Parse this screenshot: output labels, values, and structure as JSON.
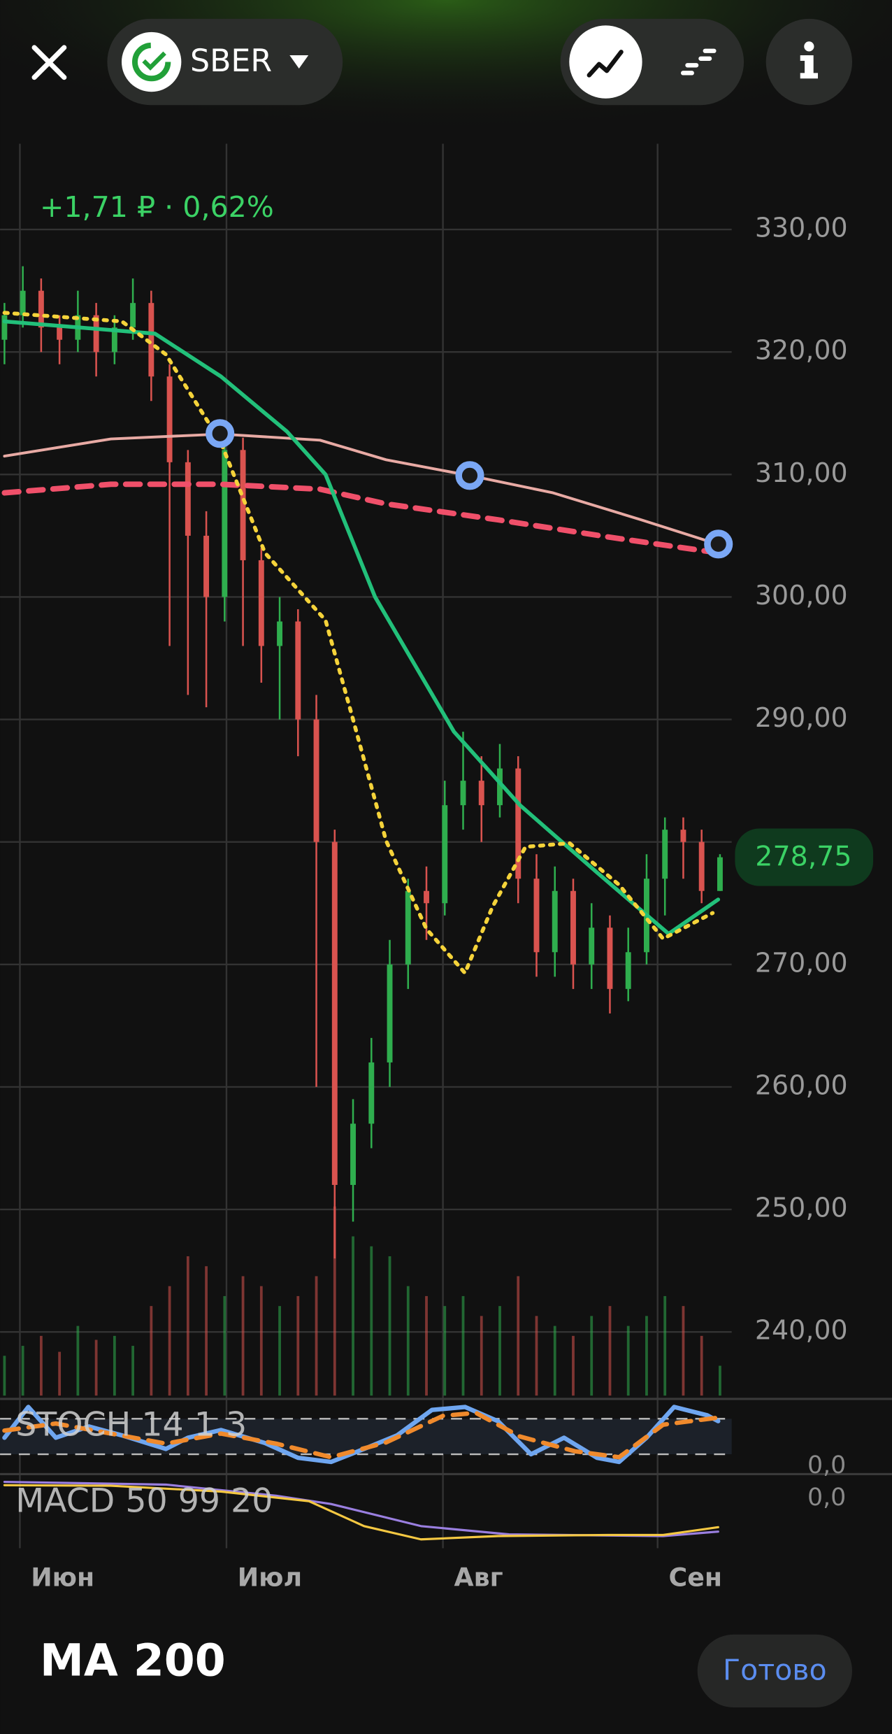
{
  "header": {
    "ticker": "SBER"
  },
  "chart_data": {
    "type": "candlestick",
    "annotation": "+1,71 ₽ · 0,62%",
    "grid": true,
    "xlim": [
      0,
      39
    ],
    "xticks": [
      {
        "value": 0.84,
        "label": "Июн"
      },
      {
        "value": 12.1,
        "label": "Июл"
      },
      {
        "value": 23.9,
        "label": "Авг"
      },
      {
        "value": 35.6,
        "label": "Сен"
      }
    ],
    "ylim": [
      234.8,
      337
    ],
    "yticks": [
      {
        "value": 330,
        "label": "330,00"
      },
      {
        "value": 320,
        "label": "320,00"
      },
      {
        "value": 310,
        "label": "310,00"
      },
      {
        "value": 300,
        "label": "300,00"
      },
      {
        "value": 290,
        "label": "290,00"
      },
      {
        "value": 280,
        "label": "280,00"
      },
      {
        "value": 270,
        "label": "270,00"
      },
      {
        "value": 260,
        "label": "260,00"
      },
      {
        "value": 250,
        "label": "250,00"
      },
      {
        "value": 240,
        "label": "240,00"
      }
    ],
    "up_color": "#2fae4e",
    "down_color": "#d9534f",
    "open": [
      321,
      323,
      325,
      322,
      321,
      323,
      320,
      322,
      324,
      318,
      311,
      305,
      300,
      312,
      303,
      296,
      298,
      290,
      280,
      252,
      257,
      262,
      270,
      276,
      275,
      283,
      285,
      283,
      286,
      277,
      271,
      276,
      270,
      273,
      268,
      271,
      277,
      281,
      280,
      276
    ],
    "high": [
      324,
      327,
      326,
      323,
      325,
      324,
      323,
      326,
      325,
      319,
      312,
      307,
      313,
      313,
      304,
      300,
      299,
      292,
      281,
      259,
      264,
      272,
      277,
      278,
      285,
      289,
      287,
      288,
      287,
      279,
      278,
      277,
      275,
      274,
      273,
      279,
      282,
      282,
      281,
      279
    ],
    "low": [
      319,
      322,
      320,
      319,
      320,
      318,
      319,
      321,
      316,
      296,
      292,
      291,
      298,
      296,
      293,
      290,
      287,
      260,
      246,
      249,
      255,
      260,
      268,
      272,
      274,
      281,
      280,
      282,
      275,
      269,
      269,
      268,
      268,
      266,
      267,
      270,
      274,
      277,
      275,
      276
    ],
    "close": [
      323,
      325,
      322,
      321,
      323,
      320,
      322,
      324,
      318,
      311,
      305,
      300,
      312,
      303,
      296,
      298,
      290,
      280,
      252,
      257,
      262,
      270,
      276,
      275,
      283,
      285,
      283,
      286,
      277,
      271,
      276,
      270,
      273,
      268,
      271,
      277,
      281,
      280,
      276,
      278.75
    ],
    "volume": {
      "ylim": [
        0,
        100
      ],
      "values": [
        20,
        25,
        30,
        22,
        35,
        28,
        30,
        25,
        45,
        55,
        70,
        65,
        50,
        60,
        55,
        45,
        50,
        60,
        95,
        80,
        75,
        70,
        55,
        50,
        45,
        50,
        40,
        45,
        60,
        40,
        35,
        30,
        40,
        45,
        35,
        40,
        50,
        45,
        30,
        15
      ]
    },
    "overlays": [
      {
        "color": "#e8aaa4",
        "style": "solid",
        "width": 2.5,
        "x": [
          0,
          5.8,
          11.8,
          17.2,
          20.8,
          25.4,
          29.9,
          34.7,
          38.9
        ],
        "values": [
          311.5,
          312.9,
          313.3,
          312.8,
          311.2,
          309.9,
          308.5,
          306.3,
          304.3
        ]
      },
      {
        "color": "#f0506a",
        "style": "dashed",
        "width": 5,
        "x": [
          0,
          5.8,
          11.8,
          17.2,
          20.8,
          26.9,
          32.9,
          38.9
        ],
        "values": [
          308.5,
          309.2,
          309.2,
          308.8,
          307.6,
          306.3,
          304.9,
          303.6
        ]
      },
      {
        "color": "#22c07a",
        "style": "solid",
        "width": 3.5,
        "x": [
          0,
          8.2,
          11.8,
          15.4,
          17.5,
          20.2,
          24.5,
          28.1,
          32.3,
          36.2,
          38.9
        ],
        "values": [
          322.5,
          321.5,
          318,
          313.5,
          310,
          300,
          289,
          283,
          277.5,
          272.5,
          275.3
        ]
      },
      {
        "color": "#f5d33a",
        "style": "dotted",
        "width": 3.5,
        "x": [
          0,
          6.4,
          8.8,
          11.8,
          14.2,
          17.5,
          19,
          20.8,
          23,
          25.1,
          26.6,
          28.4,
          30.8,
          33.5,
          35.9,
          38.6
        ],
        "values": [
          323.2,
          322.5,
          319.8,
          312.6,
          303.6,
          298.1,
          290,
          280.1,
          272.9,
          269.3,
          274.7,
          279.6,
          279.9,
          276.5,
          272.1,
          274.2
        ]
      }
    ],
    "last_price": {
      "value": 278.75,
      "label": "278,75"
    },
    "stoch": {
      "label": "STOCH 14 1 3",
      "ylim": [
        -8,
        108
      ],
      "yticks": [
        {
          "value": 0,
          "label": "0,0"
        }
      ],
      "levels": [
        80,
        20
      ],
      "series": [
        {
          "color": "#6fa6f0",
          "style": "solid",
          "width": 4,
          "x": [
            0,
            1.3,
            2.8,
            4.6,
            6.4,
            8.8,
            10,
            11.8,
            14.2,
            16,
            17.8,
            19.6,
            21.4,
            23.3,
            25.1,
            26.9,
            28.7,
            30.5,
            32.3,
            33.5,
            35,
            36.5,
            38.3,
            38.9
          ],
          "values": [
            48,
            100,
            48,
            67,
            52,
            29,
            48,
            61,
            39,
            14,
            7,
            29,
            52,
            95,
            100,
            76,
            20,
            48,
            14,
            7,
            48,
            100,
            86,
            76
          ]
        },
        {
          "color": "#f08a2c",
          "style": "dashed",
          "width": 4,
          "x": [
            0,
            2.8,
            5.8,
            8.8,
            11.8,
            14.8,
            17.8,
            20.8,
            23.9,
            25.7,
            28.1,
            31.1,
            33.5,
            35.9,
            38.9
          ],
          "values": [
            60,
            72,
            55,
            38,
            55,
            38,
            15,
            40,
            85,
            90,
            50,
            25,
            15,
            70,
            82
          ]
        }
      ]
    },
    "macd": {
      "label": "MACD 50 99 20",
      "ylim": [
        -18,
        8
      ],
      "yticks": [
        {
          "value": 0,
          "label": "0,0"
        }
      ],
      "series": [
        {
          "color": "#9a7fe0",
          "style": "solid",
          "width": 2,
          "x": [
            0,
            8.8,
            14.8,
            17.8,
            22.7,
            27.5,
            35.9,
            38.9
          ],
          "values": [
            6,
            5,
            1,
            -2,
            -10,
            -13,
            -13.6,
            -12
          ]
        },
        {
          "color": "#f5c842",
          "style": "solid",
          "width": 2,
          "x": [
            0,
            5.8,
            11.8,
            16.6,
            19.6,
            22.7,
            26.9,
            32.9,
            35.9,
            38.9
          ],
          "values": [
            4.8,
            4.6,
            2.5,
            -1,
            -10,
            -14.8,
            -13.6,
            -13.2,
            -13.2,
            -10.4
          ]
        }
      ]
    }
  },
  "footer": {
    "title": "MA 200",
    "done": "Готово"
  }
}
